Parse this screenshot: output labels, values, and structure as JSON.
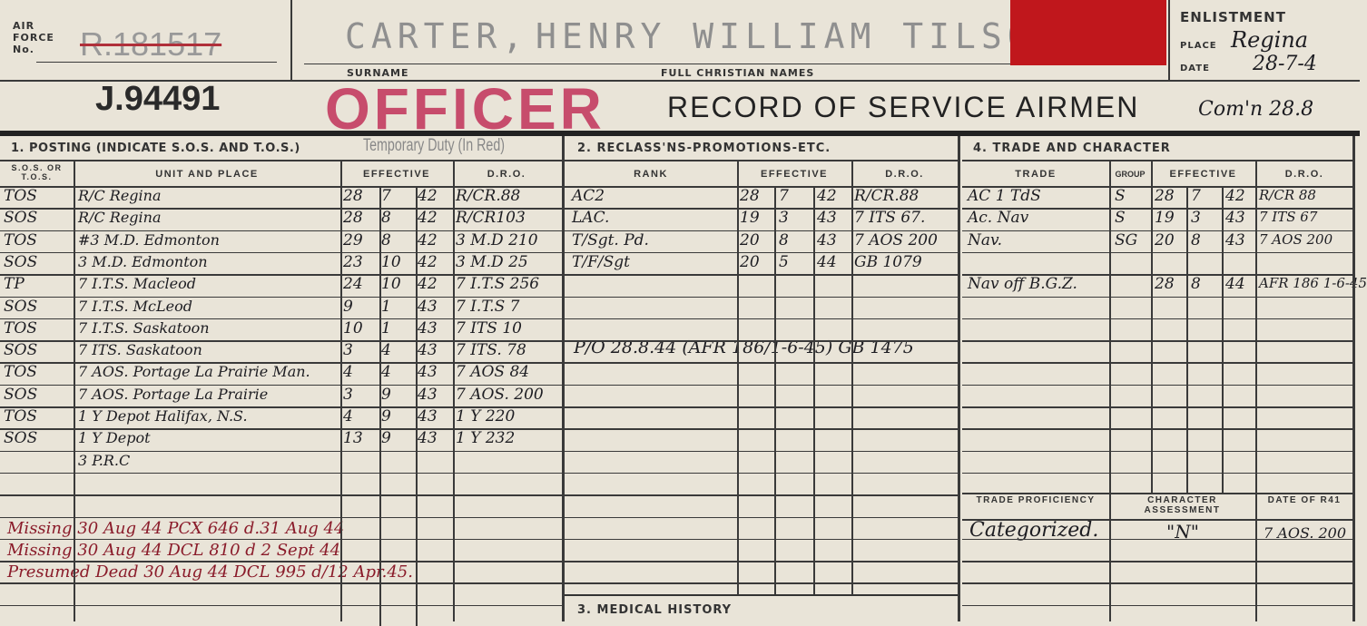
{
  "header": {
    "air_force_label": "AIR FORCE No.",
    "air_force_no_struck": "R.181517",
    "officer_no": "J.94491",
    "surname": "CARTER,",
    "surname_label": "SURNAME",
    "christian_names": "HENRY  WILLIAM  TILSON",
    "christian_names_label": "FULL CHRISTIAN NAMES",
    "red_tab_color": "#c0171c",
    "enlistment_label": "ENLISTMENT",
    "place_label": "PLACE",
    "place": "Regina",
    "date_label": "DATE",
    "date": "28-7-4",
    "officer_stamp": "OFFICER",
    "officer_stamp_color": "#c2325a",
    "title": "RECORD OF SERVICE AIRMEN",
    "commission_note": "Com'n 28.8"
  },
  "posting": {
    "title": "1. POSTING (INDICATE S.O.S. AND T.O.S.)",
    "temp_duty_stamp": "Temporary Duty (In Red)",
    "columns": [
      "S.O.S. OR T.O.S.",
      "UNIT AND PLACE",
      "EFFECTIVE",
      "D.R.O."
    ],
    "rows": [
      [
        "TOS",
        "R/C Regina",
        "28",
        "7",
        "42",
        "R/CR.88"
      ],
      [
        "SOS",
        "R/C Regina",
        "28",
        "8",
        "42",
        "R/CR103"
      ],
      [
        "TOS",
        "#3 M.D. Edmonton",
        "29",
        "8",
        "42",
        "3 M.D 210"
      ],
      [
        "SOS",
        "3 M.D. Edmonton",
        "23",
        "10",
        "42",
        "3 M.D 25"
      ],
      [
        "TP",
        "7 I.T.S. Macleod",
        "24",
        "10",
        "42",
        "7 I.T.S 256"
      ],
      [
        "SOS",
        "7 I.T.S. McLeod",
        "9",
        "1",
        "43",
        "7 I.T.S 7"
      ],
      [
        "TOS",
        "7 I.T.S. Saskatoon",
        "10",
        "1",
        "43",
        "7 ITS 10"
      ],
      [
        "SOS",
        "7 ITS. Saskatoon",
        "3",
        "4",
        "43",
        "7 ITS. 78"
      ],
      [
        "TOS",
        "7 AOS. Portage La Prairie Man.",
        "4",
        "4",
        "43",
        "7 AOS 84"
      ],
      [
        "SOS",
        "7 AOS. Portage La Prairie",
        "3",
        "9",
        "43",
        "7 AOS. 200"
      ],
      [
        "TOS",
        "1 Y Depot Halifax, N.S.",
        "4",
        "9",
        "43",
        "1 Y 220"
      ],
      [
        "SOS",
        "1 Y Depot",
        "13",
        "9",
        "43",
        "1 Y 232"
      ],
      [
        "",
        "3 P.R.C",
        "",
        "",
        "",
        ""
      ]
    ],
    "remarks": [
      "Missing 30 Aug 44 PCX 646 d.31 Aug 44",
      "Missing 30 Aug 44 DCL 810 d 2 Sept 44",
      "Presumed Dead 30 Aug 44 DCL 995 d/12 Apr.45."
    ]
  },
  "promotions": {
    "title": "2. RECLASS'NS-PROMOTIONS-ETC.",
    "columns": [
      "RANK",
      "EFFECTIVE",
      "D.R.O."
    ],
    "rows": [
      [
        "AC2",
        "28",
        "7",
        "42",
        "R/CR.88"
      ],
      [
        "LAC.",
        "19",
        "3",
        "43",
        "7 ITS 67."
      ],
      [
        "T/Sgt. Pd.",
        "20",
        "8",
        "43",
        "7 AOS 200"
      ],
      [
        "T/F/Sgt",
        "20",
        "5",
        "44",
        "GB 1079"
      ]
    ],
    "note": "P/O 28.8.44 (AFR 186/1-6-45) GB 1475"
  },
  "medical": {
    "title": "3. MEDICAL HISTORY"
  },
  "trade": {
    "title": "4. TRADE AND CHARACTER",
    "columns": [
      "TRADE",
      "GROUP",
      "EFFECTIVE",
      "D.R.O."
    ],
    "rows": [
      [
        "AC 1 TdS",
        "S",
        "28",
        "7",
        "42",
        "R/CR 88"
      ],
      [
        "Ac. Nav",
        "S",
        "19",
        "3",
        "43",
        "7 ITS 67"
      ],
      [
        "Nav.",
        "SG",
        "20",
        "8",
        "43",
        "7 AOS 200"
      ],
      [
        "",
        "",
        "",
        "",
        "",
        ""
      ],
      [
        "Nav off B.G.Z.",
        "",
        "28",
        "8",
        "44",
        "AFR 186 1-6-45"
      ]
    ],
    "sub_columns": [
      "TRADE PROFICIENCY",
      "CHARACTER ASSESSMENT",
      "DATE OF R41"
    ],
    "assessment": [
      "Categorized.",
      "\"N\"",
      "7 AOS. 200"
    ]
  }
}
